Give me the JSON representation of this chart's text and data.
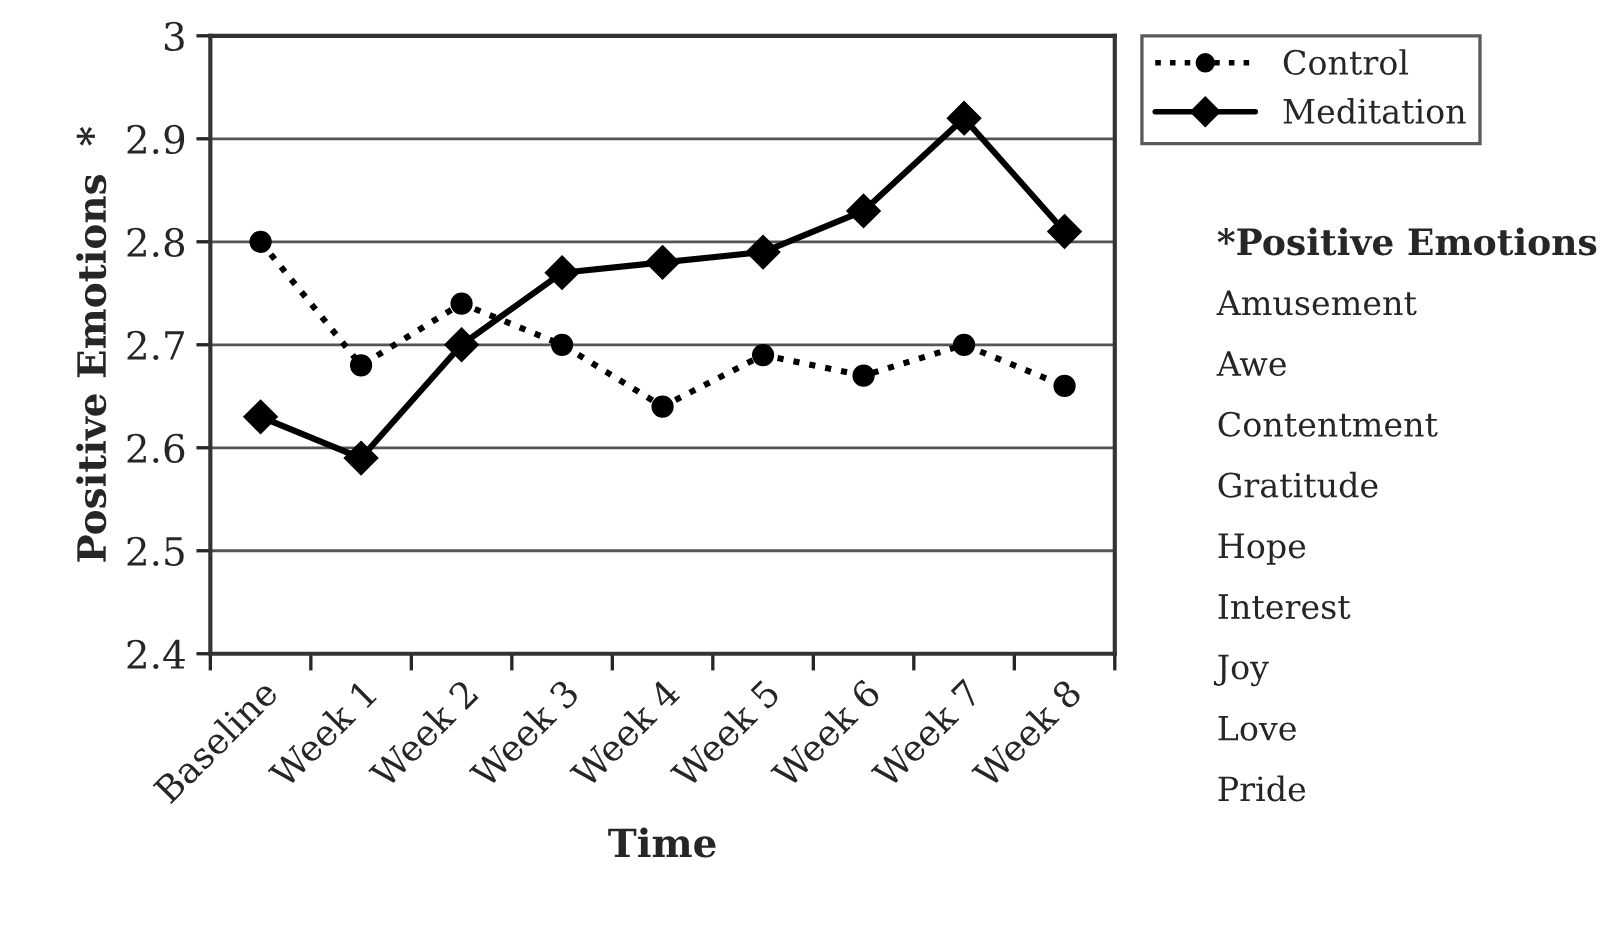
{
  "chart_data": {
    "type": "line",
    "xlabel": "Time",
    "ylabel": "Positive Emotions  *",
    "categories": [
      "Baseline",
      "Week 1",
      "Week 2",
      "Week 3",
      "Week 4",
      "Week 5",
      "Week 6",
      "Week 7",
      "Week 8"
    ],
    "series": [
      {
        "name": "Control",
        "color": "#000000",
        "marker": "circle",
        "line_style": "dotted",
        "values": [
          2.8,
          2.68,
          2.74,
          2.7,
          2.64,
          2.69,
          2.67,
          2.7,
          2.66
        ]
      },
      {
        "name": "Meditation",
        "color": "#000000",
        "marker": "diamond",
        "line_style": "solid",
        "values": [
          2.63,
          2.59,
          2.7,
          2.77,
          2.78,
          2.79,
          2.83,
          2.92,
          2.81
        ]
      }
    ],
    "ylim": [
      2.4,
      3.0
    ],
    "yticks": [
      {
        "value": 2.4,
        "label": "2.4"
      },
      {
        "value": 2.5,
        "label": "2.5"
      },
      {
        "value": 2.6,
        "label": "2.6"
      },
      {
        "value": 2.7,
        "label": "2.7"
      },
      {
        "value": 2.8,
        "label": "2.8"
      },
      {
        "value": 2.9,
        "label": "2.9"
      },
      {
        "value": 3.0,
        "label": "3"
      }
    ],
    "grid": "y",
    "legend": "top right",
    "annotations": [
      "*Positive Emotions",
      "Amusement",
      "Awe",
      "Contentment",
      "Gratitude",
      "Hope",
      "Interest",
      "Joy",
      "Love",
      "Pride"
    ]
  }
}
